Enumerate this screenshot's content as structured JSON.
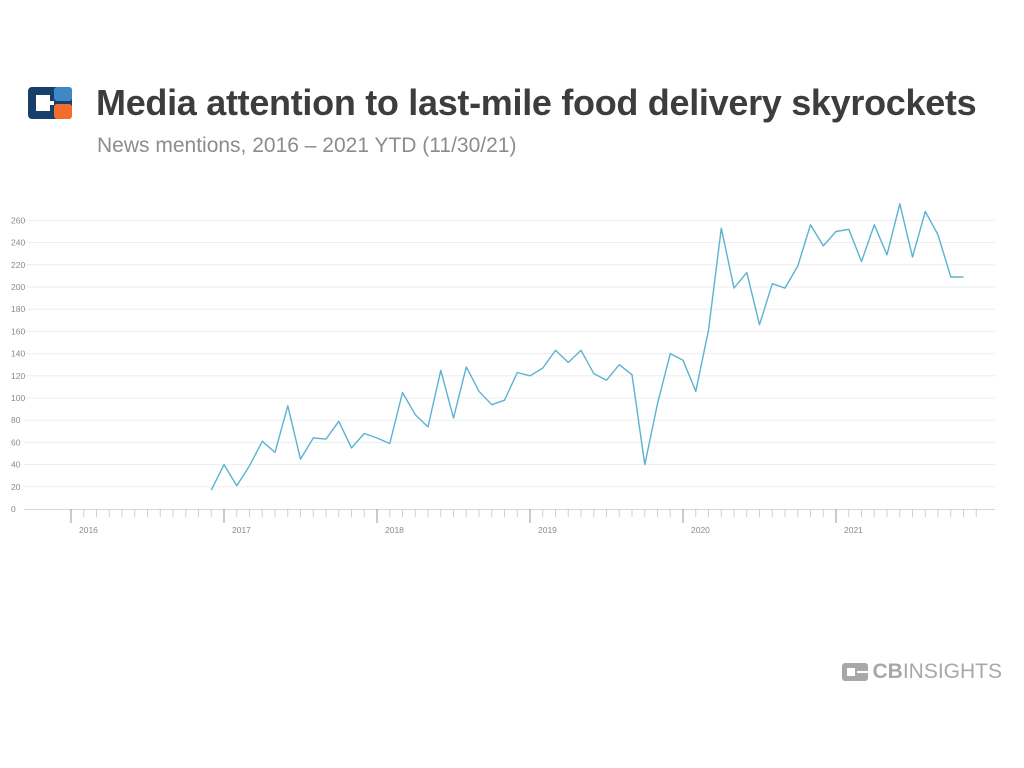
{
  "header": {
    "title": "Media attention to last-mile food delivery skyrockets",
    "subtitle": "News mentions, 2016 – 2021 YTD (11/30/21)"
  },
  "brand": {
    "logo_icon": "cb-insights-logo-icon",
    "wordmark_bold": "CB",
    "wordmark_rest": "INSIGHTS",
    "colors": {
      "navy": "#173f6b",
      "blue": "#3f88c5",
      "orange": "#f26c2e",
      "gray": "#a8a8a8"
    }
  },
  "chart_data": {
    "type": "line",
    "title": "Media attention to last-mile food delivery skyrockets",
    "subtitle": "News mentions, 2016 – 2021 YTD (11/30/21)",
    "xlabel": "",
    "ylabel": "",
    "x_start": "2016-01",
    "x_end": "2021-12",
    "year_labels": [
      "2016",
      "2017",
      "2018",
      "2019",
      "2020",
      "2021"
    ],
    "ylim": [
      0,
      280
    ],
    "yticks": [
      0,
      20,
      40,
      60,
      80,
      100,
      120,
      140,
      160,
      180,
      200,
      220,
      240,
      260
    ],
    "grid": true,
    "line_color": "#5bb3d0",
    "series": [
      {
        "x": [
          "2016-12",
          "2017-01",
          "2017-02",
          "2017-03",
          "2017-04",
          "2017-05",
          "2017-06",
          "2017-07",
          "2017-08",
          "2017-09",
          "2017-10",
          "2017-11",
          "2017-12",
          "2018-01",
          "2018-02",
          "2018-03",
          "2018-04",
          "2018-05",
          "2018-06",
          "2018-07",
          "2018-08",
          "2018-09",
          "2018-10",
          "2018-11",
          "2018-12",
          "2019-01",
          "2019-02",
          "2019-03",
          "2019-04",
          "2019-05",
          "2019-06",
          "2019-07",
          "2019-08",
          "2019-09",
          "2019-10",
          "2019-11",
          "2019-12",
          "2020-01",
          "2020-02",
          "2020-03",
          "2020-04",
          "2020-05",
          "2020-06",
          "2020-07",
          "2020-08",
          "2020-09",
          "2020-10",
          "2020-11",
          "2020-12",
          "2021-01",
          "2021-02",
          "2021-03",
          "2021-04",
          "2021-05",
          "2021-06",
          "2021-07",
          "2021-08",
          "2021-09",
          "2021-10",
          "2021-11"
        ],
        "values": [
          17,
          40,
          21,
          39,
          61,
          51,
          93,
          45,
          64,
          63,
          79,
          55,
          68,
          64,
          59,
          105,
          85,
          74,
          125,
          82,
          128,
          106,
          94,
          98,
          123,
          120,
          127,
          143,
          132,
          143,
          122,
          116,
          130,
          121,
          40,
          95,
          140,
          134,
          106,
          161,
          253,
          199,
          213,
          166,
          203,
          199,
          219,
          256,
          237,
          250,
          252,
          223,
          256,
          229,
          275,
          227,
          268,
          247,
          209,
          209
        ]
      }
    ]
  }
}
